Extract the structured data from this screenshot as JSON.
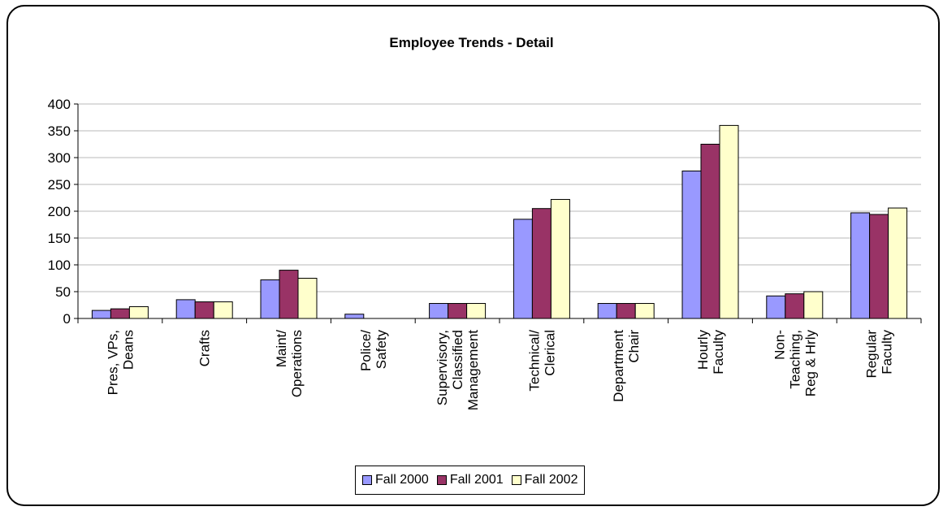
{
  "chart_data": {
    "type": "bar",
    "title": "Employee Trends - Detail",
    "categories": [
      [
        "Pres, VPs,",
        "Deans"
      ],
      [
        "Crafts"
      ],
      [
        "Maint/",
        "Operations"
      ],
      [
        "Police/",
        "Safety"
      ],
      [
        "Supervisory,",
        "Classified",
        "Management"
      ],
      [
        "Technical/",
        "Clerical"
      ],
      [
        "Department",
        "Chair"
      ],
      [
        "Hourly",
        "Faculty"
      ],
      [
        "Non-",
        "Teaching,",
        "Reg & Hrly"
      ],
      [
        "Regular",
        "Faculty"
      ]
    ],
    "series": [
      {
        "name": "Fall 2000",
        "color": "#9999ff",
        "values": [
          15,
          35,
          72,
          8,
          28,
          185,
          28,
          275,
          42,
          197
        ]
      },
      {
        "name": "Fall 2001",
        "color": "#993366",
        "values": [
          18,
          31,
          90,
          0,
          28,
          205,
          28,
          325,
          46,
          194
        ]
      },
      {
        "name": "Fall 2002",
        "color": "#ffffcc",
        "values": [
          22,
          31,
          75,
          0,
          28,
          222,
          28,
          360,
          50,
          206
        ]
      }
    ],
    "ylim": [
      0,
      400
    ],
    "yticks": [
      0,
      50,
      100,
      150,
      200,
      250,
      300,
      350,
      400
    ],
    "xlabel": "",
    "ylabel": "",
    "grid": true,
    "legend_position": "bottom"
  }
}
